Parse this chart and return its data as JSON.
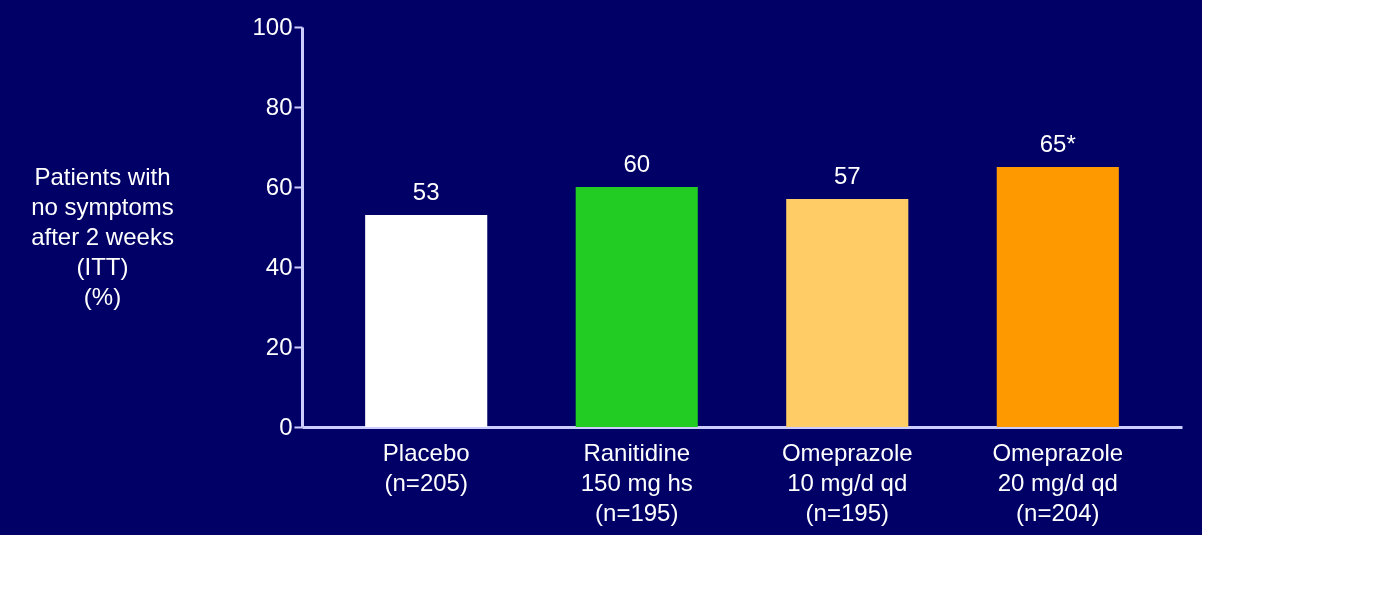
{
  "chart_data": {
    "type": "bar",
    "ylabel": "Patients with\nno symptoms\nafter 2 weeks\n(ITT)\n(%)",
    "categories": [
      "Placebo\n(n=205)",
      "Ranitidine\n150 mg hs\n(n=195)",
      "Omeprazole\n10 mg/d qd\n(n=195)",
      "Omeprazole\n20 mg/d qd\n(n=204)"
    ],
    "values": [
      53,
      60,
      57,
      65
    ],
    "colors": [
      "#ffffff",
      "#22cc22",
      "#ffcc66",
      "#ff9900"
    ],
    "value_labels": [
      "53",
      "60",
      "57",
      "65*"
    ],
    "ylim": [
      0,
      100
    ],
    "yticks": [
      0,
      20,
      40,
      60,
      80,
      100
    ],
    "grid": false
  }
}
